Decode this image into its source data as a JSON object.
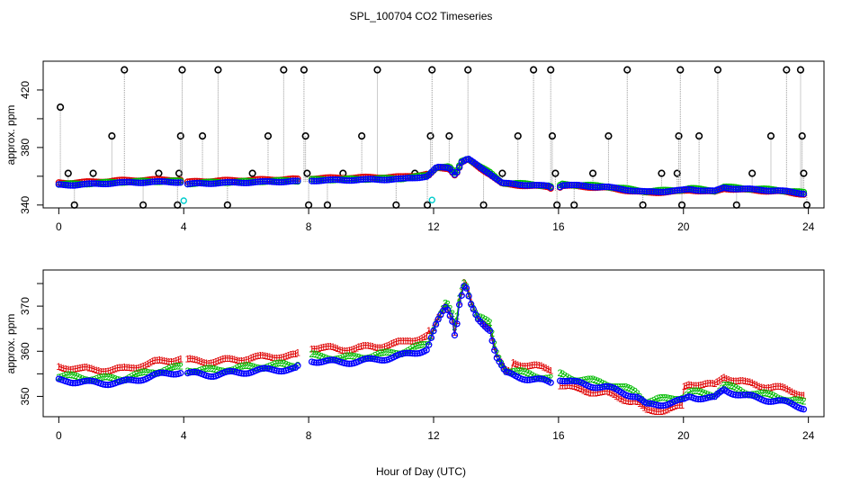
{
  "title": "SPL_100704  CO2 Timeseries",
  "xlabel": "Hour of Day (UTC)",
  "chart_data": [
    {
      "type": "scatter",
      "panel": "top",
      "ylabel": "approx. ppm",
      "xlim": [
        -0.5,
        24.5
      ],
      "ylim": [
        338,
        440
      ],
      "xticks": [
        0,
        4,
        8,
        12,
        16,
        20,
        24
      ],
      "yticks": [
        340,
        380,
        420
      ],
      "ytick_minor": [
        360,
        400
      ],
      "anchors": [
        [
          0.0,
          354
        ],
        [
          0.5,
          354
        ],
        [
          1.0,
          354.5
        ],
        [
          1.5,
          355
        ],
        [
          2.0,
          355.5
        ],
        [
          3.0,
          356
        ],
        [
          3.9,
          356
        ],
        [
          3.95,
          354
        ],
        [
          4.5,
          355
        ],
        [
          5.5,
          355.5
        ],
        [
          6.5,
          356
        ],
        [
          7.5,
          356.5
        ],
        [
          7.9,
          356
        ],
        [
          8.1,
          357
        ],
        [
          9.5,
          357.5
        ],
        [
          11.0,
          358
        ],
        [
          11.8,
          360
        ],
        [
          12.1,
          366
        ],
        [
          12.5,
          366
        ],
        [
          12.7,
          361
        ],
        [
          12.9,
          370
        ],
        [
          13.1,
          372
        ],
        [
          13.5,
          366
        ],
        [
          13.8,
          362
        ],
        [
          14.2,
          355
        ],
        [
          15.0,
          354
        ],
        [
          15.7,
          353
        ],
        [
          15.9,
          350
        ],
        [
          16.1,
          354
        ],
        [
          17.5,
          352.5
        ],
        [
          18.8,
          349
        ],
        [
          19.9,
          350
        ],
        [
          20.2,
          351
        ],
        [
          21.0,
          349.5
        ],
        [
          21.3,
          352
        ],
        [
          22.0,
          351
        ],
        [
          23.0,
          350
        ],
        [
          23.9,
          348
        ]
      ],
      "series": [
        {
          "name": "1",
          "color": "#df0000",
          "offset": 1.5,
          "marker": "circle"
        },
        {
          "name": "2",
          "color": "#00bb00",
          "offset": 0.5,
          "marker": "circle"
        },
        {
          "name": "3",
          "color": "#0000ff",
          "offset": 0,
          "marker": "circle"
        }
      ],
      "spikes": {
        "color": "#000000",
        "points": [
          [
            0.05,
            408
          ],
          [
            0.3,
            362
          ],
          [
            0.5,
            340
          ],
          [
            1.1,
            362
          ],
          [
            1.7,
            388
          ],
          [
            2.1,
            434
          ],
          [
            2.7,
            340
          ],
          [
            3.2,
            362
          ],
          [
            3.8,
            340
          ],
          [
            3.85,
            362
          ],
          [
            3.9,
            388
          ],
          [
            3.95,
            434
          ],
          [
            5.1,
            434
          ],
          [
            4.6,
            388
          ],
          [
            5.4,
            340
          ],
          [
            6.2,
            362
          ],
          [
            6.7,
            388
          ],
          [
            7.2,
            434
          ],
          [
            7.85,
            434
          ],
          [
            7.9,
            388
          ],
          [
            7.95,
            362
          ],
          [
            8.0,
            340
          ],
          [
            8.6,
            340
          ],
          [
            9.1,
            362
          ],
          [
            9.7,
            388
          ],
          [
            10.2,
            434
          ],
          [
            10.8,
            340
          ],
          [
            11.4,
            362
          ],
          [
            11.8,
            340
          ],
          [
            11.9,
            388
          ],
          [
            11.95,
            434
          ],
          [
            12.5,
            388
          ],
          [
            13.1,
            434
          ],
          [
            13.6,
            340
          ],
          [
            14.2,
            362
          ],
          [
            14.7,
            388
          ],
          [
            15.2,
            434
          ],
          [
            15.75,
            434
          ],
          [
            15.8,
            388
          ],
          [
            15.9,
            362
          ],
          [
            15.95,
            340
          ],
          [
            16.5,
            340
          ],
          [
            17.1,
            362
          ],
          [
            17.6,
            388
          ],
          [
            18.2,
            434
          ],
          [
            18.7,
            340
          ],
          [
            19.3,
            362
          ],
          [
            19.8,
            362
          ],
          [
            19.85,
            388
          ],
          [
            19.9,
            434
          ],
          [
            19.95,
            340
          ],
          [
            20.5,
            388
          ],
          [
            21.1,
            434
          ],
          [
            21.7,
            340
          ],
          [
            22.2,
            362
          ],
          [
            22.8,
            388
          ],
          [
            23.3,
            434
          ],
          [
            23.75,
            434
          ],
          [
            23.8,
            388
          ],
          [
            23.85,
            362
          ],
          [
            23.95,
            340
          ]
        ]
      },
      "cyan_points": [
        [
          4.0,
          343
        ],
        [
          11.95,
          343.5
        ]
      ]
    },
    {
      "type": "scatter",
      "panel": "bottom",
      "ylabel": "approx. ppm",
      "xlim": [
        -0.5,
        24.5
      ],
      "ylim": [
        345.5,
        378
      ],
      "xticks": [
        0,
        4,
        8,
        12,
        16,
        20,
        24
      ],
      "yticks": [
        350,
        360,
        370
      ],
      "ytick_minor": [
        355,
        365,
        375
      ],
      "anchors": [
        [
          0.0,
          353.5
        ],
        [
          0.3,
          353.5
        ],
        [
          1.0,
          353
        ],
        [
          2.0,
          353
        ],
        [
          3.0,
          354.5
        ],
        [
          3.9,
          355.5
        ],
        [
          4.1,
          355
        ],
        [
          5.0,
          354.8
        ],
        [
          6.0,
          355.5
        ],
        [
          7.0,
          356
        ],
        [
          7.6,
          356
        ],
        [
          7.8,
          357.5
        ],
        [
          8.1,
          358
        ],
        [
          9.0,
          357.5
        ],
        [
          10.0,
          358
        ],
        [
          11.0,
          359
        ],
        [
          11.8,
          360.5
        ],
        [
          12.1,
          366
        ],
        [
          12.4,
          370
        ],
        [
          12.6,
          367
        ],
        [
          12.7,
          363
        ],
        [
          12.8,
          370
        ],
        [
          13.0,
          375
        ],
        [
          13.2,
          370
        ],
        [
          13.4,
          367
        ],
        [
          13.8,
          365
        ],
        [
          14.0,
          359
        ],
        [
          14.3,
          355
        ],
        [
          15.0,
          354
        ],
        [
          15.8,
          353
        ],
        [
          16.0,
          354
        ],
        [
          16.5,
          353
        ],
        [
          17.5,
          352
        ],
        [
          18.5,
          350
        ],
        [
          18.8,
          348
        ],
        [
          19.5,
          348.5
        ],
        [
          20.0,
          349
        ],
        [
          20.2,
          350
        ],
        [
          21.0,
          349.5
        ],
        [
          21.3,
          351.5
        ],
        [
          22.0,
          350
        ],
        [
          23.0,
          349
        ],
        [
          23.9,
          347.5
        ]
      ],
      "series": [
        {
          "name": "1",
          "color": "#df0000",
          "offset": 3,
          "marker": "1"
        },
        {
          "name": "2",
          "color": "#00bb00",
          "offset": 1,
          "marker": "2"
        },
        {
          "name": "3",
          "color": "#0000ff",
          "offset": 0,
          "marker": "o"
        }
      ]
    }
  ]
}
